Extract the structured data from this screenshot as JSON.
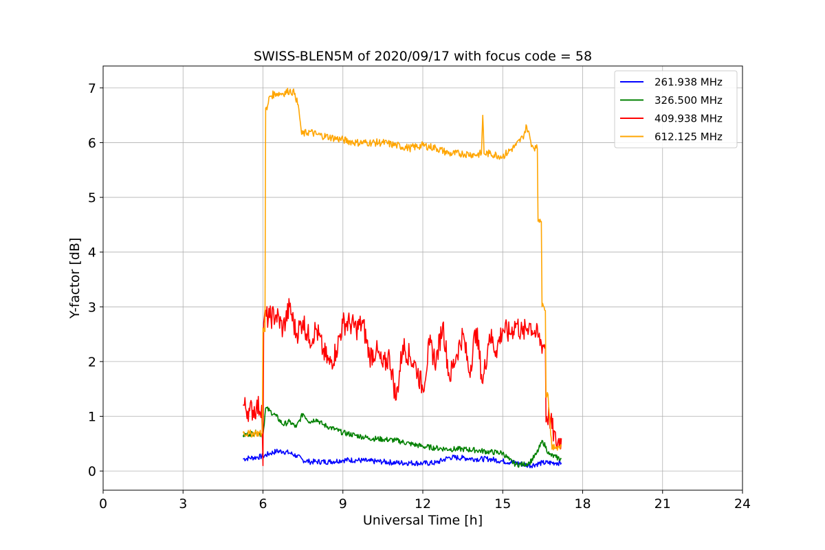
{
  "chart_data": {
    "type": "line",
    "title": "SWISS-BLEN5M of 2020/09/17 with focus code = 58",
    "xlabel": "Universal Time [h]",
    "ylabel": "Y-factor [dB]",
    "xlim": [
      0,
      24
    ],
    "ylim": [
      -0.35,
      7.4
    ],
    "xticks": [
      0,
      3,
      6,
      9,
      12,
      15,
      18,
      21,
      24
    ],
    "xtick_labels": [
      "0",
      "3",
      "6",
      "9",
      "12",
      "15",
      "18",
      "21",
      "24"
    ],
    "yticks": [
      0,
      1,
      2,
      3,
      4,
      5,
      6,
      7
    ],
    "ytick_labels": [
      "0",
      "1",
      "2",
      "3",
      "4",
      "5",
      "6",
      "7"
    ],
    "grid": true,
    "legend_position": "top-right",
    "series": [
      {
        "name": "261.938 MHz",
        "color": "#0000ff",
        "x": [
          5.25,
          5.5,
          5.75,
          6.0,
          6.25,
          6.5,
          6.75,
          7.0,
          7.25,
          7.5,
          7.75,
          8.0,
          8.5,
          9.0,
          9.5,
          10.0,
          10.5,
          11.0,
          11.5,
          12.0,
          12.5,
          13.0,
          13.5,
          14.0,
          14.5,
          15.0,
          15.5,
          16.0,
          16.5,
          17.0,
          17.2
        ],
        "y": [
          0.22,
          0.24,
          0.25,
          0.27,
          0.32,
          0.36,
          0.36,
          0.33,
          0.28,
          0.2,
          0.17,
          0.17,
          0.17,
          0.2,
          0.2,
          0.18,
          0.17,
          0.15,
          0.15,
          0.14,
          0.15,
          0.25,
          0.24,
          0.22,
          0.22,
          0.18,
          0.15,
          0.1,
          0.15,
          0.15,
          0.15
        ]
      },
      {
        "name": "326.500 MHz",
        "color": "#008000",
        "x": [
          5.25,
          5.5,
          5.75,
          6.0,
          6.1,
          6.25,
          6.5,
          6.75,
          7.0,
          7.25,
          7.5,
          7.75,
          8.0,
          8.25,
          8.5,
          9.0,
          9.5,
          10.0,
          10.5,
          11.0,
          11.5,
          12.0,
          12.5,
          13.0,
          13.5,
          14.0,
          14.5,
          15.0,
          15.25,
          15.5,
          15.75,
          16.0,
          16.25,
          16.5,
          16.75,
          17.0,
          17.2
        ],
        "y": [
          0.65,
          0.68,
          0.7,
          0.65,
          1.15,
          1.1,
          1.0,
          0.85,
          0.9,
          0.8,
          1.05,
          0.9,
          0.95,
          0.85,
          0.8,
          0.7,
          0.65,
          0.6,
          0.58,
          0.56,
          0.5,
          0.45,
          0.42,
          0.4,
          0.4,
          0.38,
          0.35,
          0.33,
          0.2,
          0.12,
          0.12,
          0.15,
          0.3,
          0.55,
          0.3,
          0.25,
          0.22
        ]
      },
      {
        "name": "409.938 MHz",
        "color": "#ff0000",
        "x": [
          5.25,
          5.5,
          5.75,
          5.95,
          6.0,
          6.05,
          6.25,
          6.5,
          6.75,
          7.0,
          7.25,
          7.5,
          7.75,
          8.0,
          8.25,
          8.5,
          8.75,
          9.0,
          9.25,
          9.5,
          9.75,
          10.0,
          10.25,
          10.5,
          10.75,
          11.0,
          11.25,
          11.5,
          11.75,
          12.0,
          12.25,
          12.5,
          12.75,
          13.0,
          13.25,
          13.5,
          13.75,
          14.0,
          14.25,
          14.5,
          14.75,
          15.0,
          15.25,
          15.5,
          15.75,
          16.0,
          16.25,
          16.5,
          16.75,
          17.0,
          17.2
        ],
        "y": [
          1.2,
          1.1,
          1.15,
          1.2,
          0.1,
          2.8,
          2.8,
          2.85,
          2.6,
          3.0,
          2.5,
          2.75,
          2.4,
          2.6,
          2.2,
          1.95,
          2.2,
          2.7,
          2.7,
          2.6,
          2.7,
          2.1,
          2.2,
          1.9,
          2.1,
          1.3,
          2.3,
          2.1,
          1.9,
          1.5,
          2.3,
          2.0,
          2.7,
          1.7,
          2.1,
          2.5,
          1.8,
          2.6,
          1.6,
          2.5,
          2.2,
          2.6,
          2.5,
          2.7,
          2.5,
          2.7,
          2.5,
          2.3,
          1.0,
          0.5,
          0.6
        ]
      },
      {
        "name": "612.125 MHz",
        "color": "#ffa500",
        "x": [
          5.25,
          5.5,
          5.75,
          5.95,
          6.05,
          6.15,
          6.25,
          6.5,
          6.75,
          7.0,
          7.2,
          7.35,
          7.45,
          7.75,
          8.0,
          8.5,
          9.0,
          9.5,
          10.0,
          10.5,
          11.0,
          11.5,
          12.0,
          12.5,
          13.0,
          13.5,
          14.0,
          14.2,
          14.25,
          14.3,
          14.5,
          15.0,
          15.5,
          15.75,
          15.9,
          16.1,
          16.25,
          16.4,
          16.55,
          16.7,
          16.85,
          17.0,
          17.2
        ],
        "y": [
          0.7,
          0.68,
          0.7,
          0.68,
          2.6,
          6.6,
          6.85,
          6.9,
          6.9,
          6.95,
          6.9,
          6.6,
          6.15,
          6.2,
          6.15,
          6.1,
          6.05,
          6.0,
          6.0,
          6.0,
          5.95,
          5.9,
          5.95,
          5.9,
          5.8,
          5.8,
          5.78,
          5.8,
          6.5,
          5.8,
          5.8,
          5.75,
          5.95,
          6.1,
          6.3,
          5.95,
          5.9,
          4.6,
          3.0,
          1.4,
          0.4,
          0.45,
          0.45
        ]
      }
    ]
  }
}
